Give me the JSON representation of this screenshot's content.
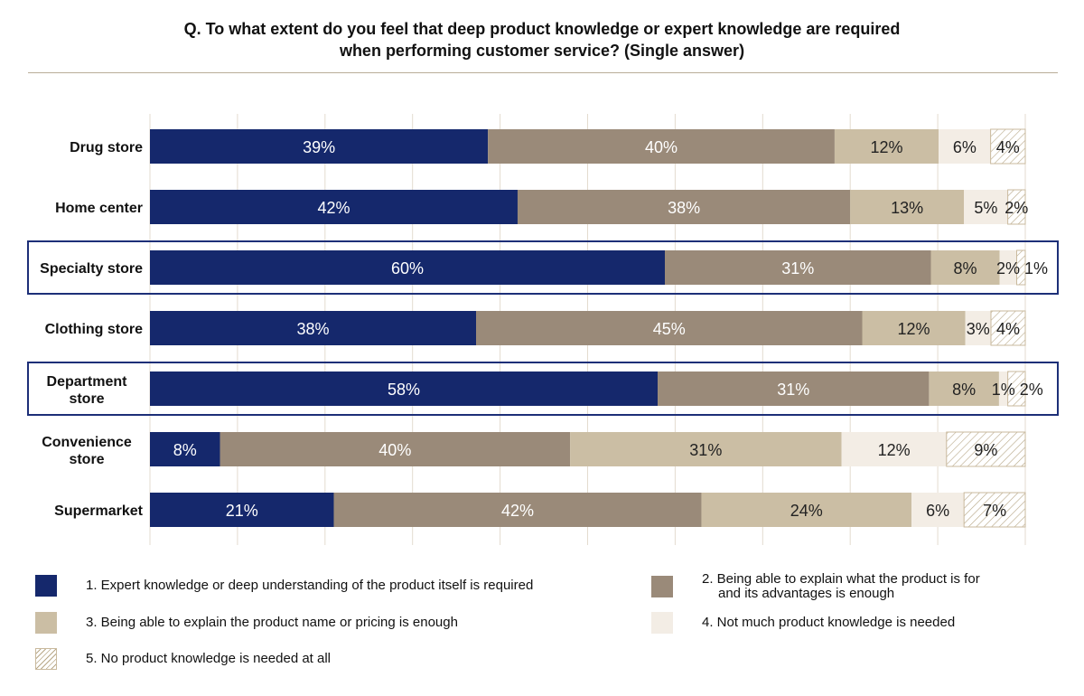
{
  "title": {
    "line1": "Q. To what extent do you feel that deep product knowledge or expert knowledge are required",
    "line2": "when performing customer service? (Single answer)"
  },
  "colors": {
    "s1": "#15286c",
    "s2": "#9a8a79",
    "s3": "#cbbea4",
    "s4": "#f3ede5",
    "s5_hatch": "#b8a888",
    "highlight": "#1d2f78",
    "grid": "#e3dbcf"
  },
  "chart_data": {
    "type": "bar",
    "orientation": "horizontal",
    "stacked": true,
    "xlim": [
      0,
      100
    ],
    "grid": true,
    "legend_placement": "bottom",
    "categories": [
      "Drug store",
      "Home center",
      "Specialty store",
      "Clothing store",
      "Department store",
      "Convenience store",
      "Supermarket"
    ],
    "highlighted": [
      "Specialty store",
      "Department store"
    ],
    "series": [
      {
        "name": "1. Expert knowledge or deep understanding of the product itself is required",
        "values": [
          39,
          42,
          60,
          38,
          58,
          8,
          21
        ]
      },
      {
        "name": "2. Being able to explain what the product is for and its advantages is enough",
        "values": [
          40,
          38,
          31,
          45,
          31,
          40,
          42
        ]
      },
      {
        "name": "3. Being able to explain the product name or pricing is enough",
        "values": [
          12,
          13,
          8,
          12,
          8,
          31,
          24
        ]
      },
      {
        "name": "4. Not much product knowledge is needed",
        "values": [
          6,
          5,
          2,
          3,
          1,
          12,
          6
        ]
      },
      {
        "name": "5. No product knowledge is needed at all",
        "values": [
          4,
          2,
          1,
          4,
          2,
          9,
          7
        ]
      }
    ],
    "value_suffix": "%"
  },
  "legend": {
    "l1": "1. Expert knowledge or deep understanding of the product itself is required",
    "l2a": "2. Being able to explain what the product is for",
    "l2b": "and its advantages is enough",
    "l3": "3. Being able to explain the product name or pricing is enough",
    "l4": "4. Not much product knowledge is needed",
    "l5": "5. No product knowledge is needed at all"
  }
}
